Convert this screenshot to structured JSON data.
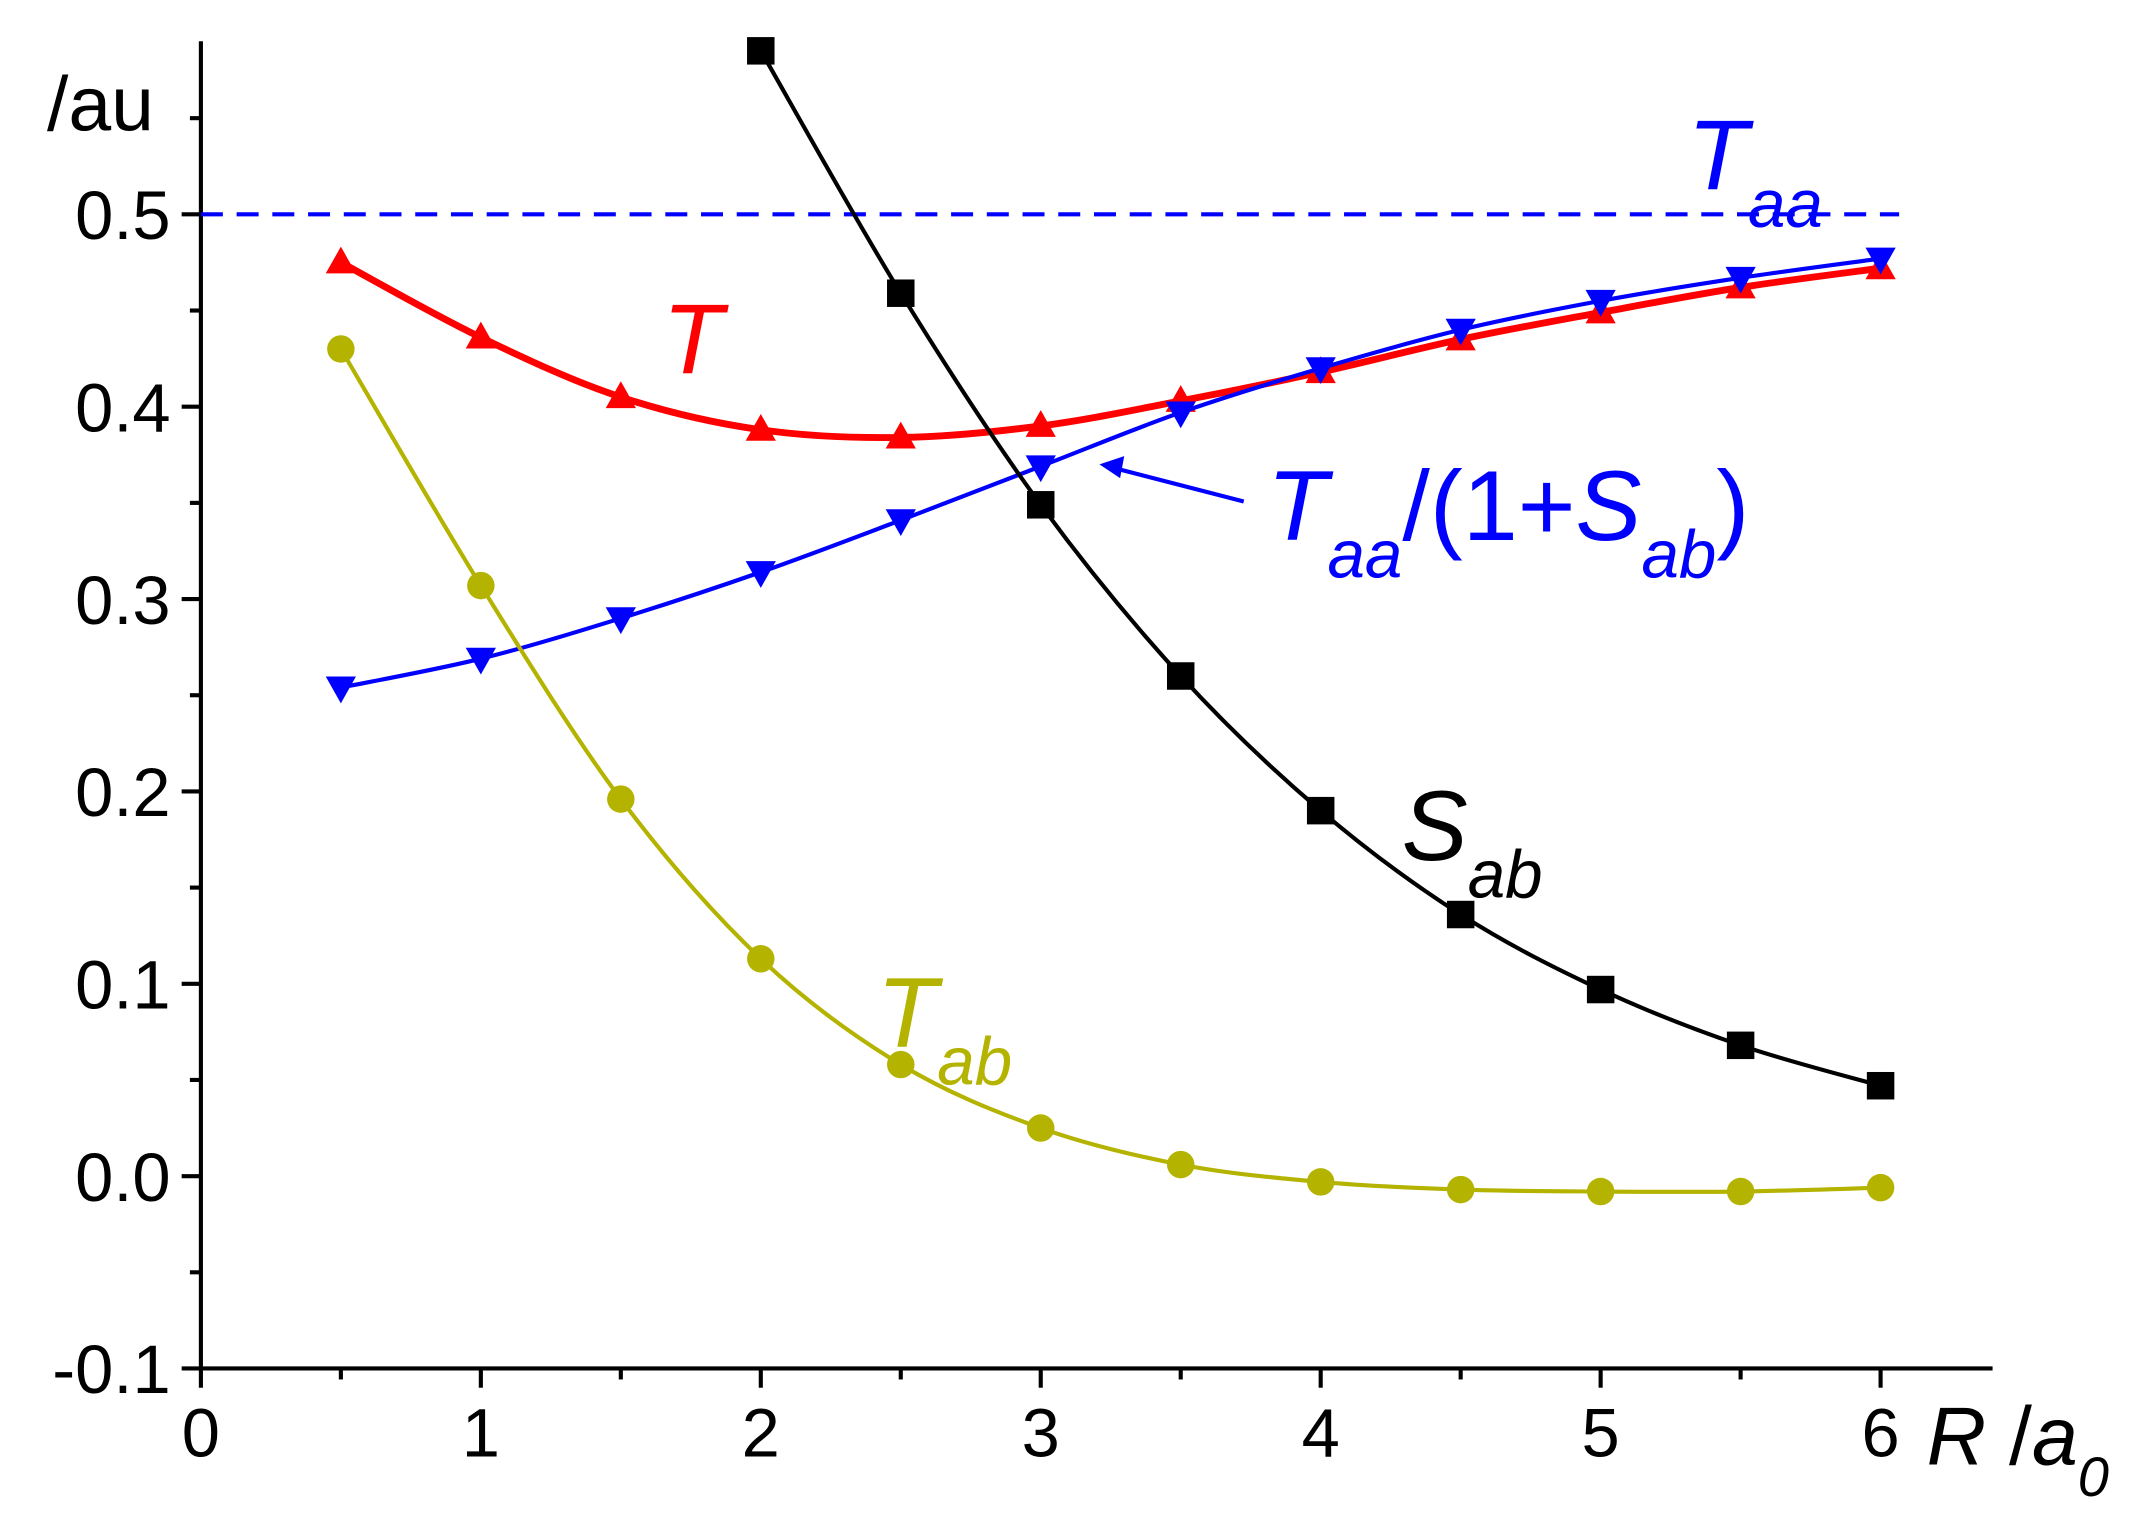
{
  "chart_data": {
    "type": "line",
    "y_label": "/au",
    "x_label": [
      {
        "text": "R",
        "style": "italic"
      },
      {
        "text": " /",
        "style": "normal"
      },
      {
        "text": "a",
        "style": "italic"
      },
      {
        "text": "0",
        "style": "sub"
      }
    ],
    "x": [
      0.5,
      1,
      1.5,
      2,
      2.5,
      3,
      3.5,
      4,
      4.5,
      5,
      5.5,
      6
    ],
    "series": [
      {
        "color": "#ff0000",
        "marker": "triangle-up",
        "width": 5,
        "values": [
          0.475,
          0.436,
          0.405,
          0.388,
          0.384,
          0.39,
          0.403,
          0.418,
          0.435,
          0.449,
          0.462,
          0.472
        ]
      },
      {
        "color": "#0000ff",
        "marker": "triangle-down",
        "width": 3,
        "values": [
          0.254,
          0.269,
          0.29,
          0.314,
          0.341,
          0.369,
          0.397,
          0.42,
          0.44,
          0.455,
          0.467,
          0.477
        ]
      },
      {
        "color": "#000000",
        "marker": "square",
        "width": 3,
        "values": [
          null,
          null,
          null,
          0.585,
          0.459,
          0.349,
          0.26,
          0.19,
          0.136,
          0.097,
          0.068,
          0.047
        ]
      },
      {
        "color": "#b3b300",
        "marker": "circle",
        "width": 3,
        "values": [
          0.43,
          0.307,
          0.196,
          0.113,
          0.058,
          0.025,
          0.006,
          -0.003,
          -0.007,
          -0.008,
          -0.008,
          -0.006
        ]
      }
    ],
    "reference_lines": [
      {
        "value": 0.5,
        "color": "#0000ff",
        "dash": "dashed"
      }
    ],
    "annotations": [
      {
        "color": "#ff0000",
        "parts": [
          {
            "text": "T",
            "style": "italic"
          }
        ]
      },
      {
        "color": "#0000ff",
        "parts": [
          {
            "text": "T",
            "style": "italic"
          },
          {
            "text": "aa",
            "style": "sub"
          }
        ]
      },
      {
        "color": "#0000ff",
        "parts": [
          {
            "text": "T",
            "style": "italic"
          },
          {
            "text": "aa",
            "style": "sub"
          },
          {
            "text": "/(1+",
            "style": "normal"
          },
          {
            "text": "S",
            "style": "italic"
          },
          {
            "text": "ab",
            "style": "sub"
          },
          {
            "text": ")",
            "style": "normal"
          }
        ]
      },
      {
        "color": "#000000",
        "parts": [
          {
            "text": "S",
            "style": "italic"
          },
          {
            "text": "ab",
            "style": "sub"
          }
        ]
      },
      {
        "color": "#b3b300",
        "parts": [
          {
            "text": "T",
            "style": "italic"
          },
          {
            "text": "ab",
            "style": "sub"
          }
        ]
      }
    ],
    "xlim": [
      0,
      6.4
    ],
    "ylim": [
      -0.1,
      0.59
    ],
    "xticks": [
      0,
      1,
      2,
      3,
      4,
      5,
      6
    ],
    "yticks": [
      -0.1,
      {
        "value": 0,
        "label": "0.0"
      },
      0.1,
      0.2,
      0.3,
      0.4,
      0.5
    ],
    "xminorticks": [
      0.5,
      1.5,
      2.5,
      3.5,
      4.5,
      5.5
    ],
    "yminorticks": [
      -0.05,
      0.05,
      0.15,
      0.25,
      0.35,
      0.45,
      0.55
    ]
  }
}
